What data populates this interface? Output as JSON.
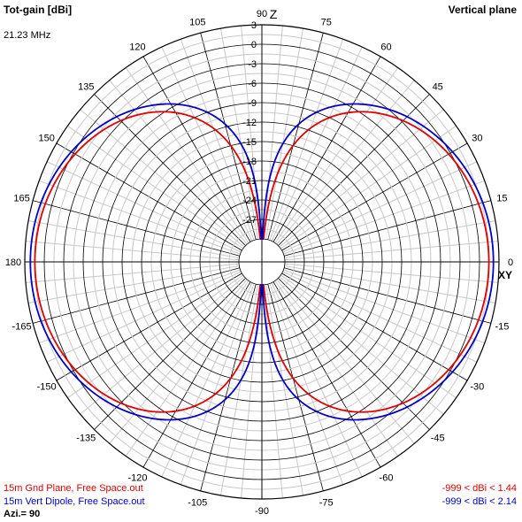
{
  "header": {
    "title": "Tot-gain [dBi]",
    "plane": "Vertical plane",
    "frequency": "21.23 MHz"
  },
  "chart_data": {
    "type": "polar",
    "gain_ticks": [
      "3",
      "0",
      "-3",
      "-6",
      "-9",
      "-12",
      "-15",
      "-18",
      "-21",
      "-24",
      "-27"
    ],
    "angle_labels": [
      "90",
      "75",
      "60",
      "45",
      "30",
      "15",
      "0",
      "-15",
      "-30",
      "-45",
      "-60",
      "-75",
      "-90",
      "-105",
      "-120",
      "-135",
      "-150",
      "-165",
      "180",
      "165",
      "150",
      "135",
      "120",
      "105"
    ],
    "axis_labels": {
      "top": "Z",
      "right": "XY"
    },
    "rlim_dbi": [
      -30,
      3
    ],
    "series": [
      {
        "name": "15m Gnd Plane, Free Space.out",
        "range": "-999 < dBi < 1.44",
        "color": "#e00000",
        "max_dbi": 1.44,
        "pattern": "cos^1.4"
      },
      {
        "name": "15m Vert Dipole, Free Space.out",
        "range": "-999 < dBi < 2.14",
        "color": "#0000c8",
        "max_dbi": 2.14,
        "pattern": "half-wave dipole"
      }
    ]
  },
  "footer": {
    "azimuth": "Azi.= 90"
  }
}
